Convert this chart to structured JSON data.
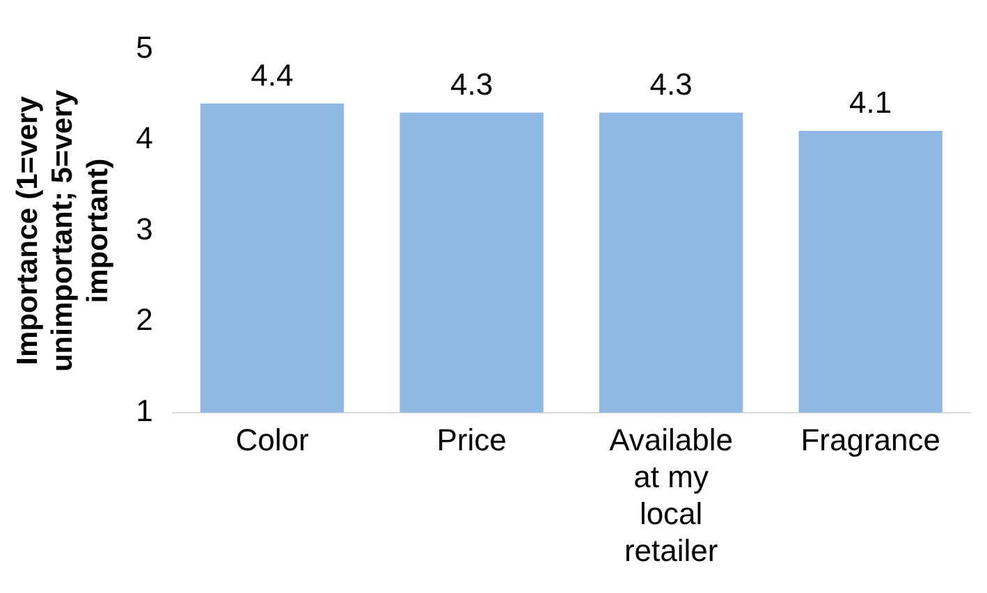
{
  "chart_data": {
    "type": "bar",
    "ylabel": "Importance (1=very unimportant; 5=very important)",
    "categories": [
      "Color",
      "Price",
      "Available at my local retailer",
      "Fragrance"
    ],
    "values": [
      4.4,
      4.3,
      4.3,
      4.1
    ],
    "color": "#8fb8e3",
    "ylim": [
      1,
      5
    ],
    "yticks": [
      1,
      2,
      3,
      4,
      5
    ],
    "grid": false,
    "legend": false,
    "data_labels": true
  }
}
